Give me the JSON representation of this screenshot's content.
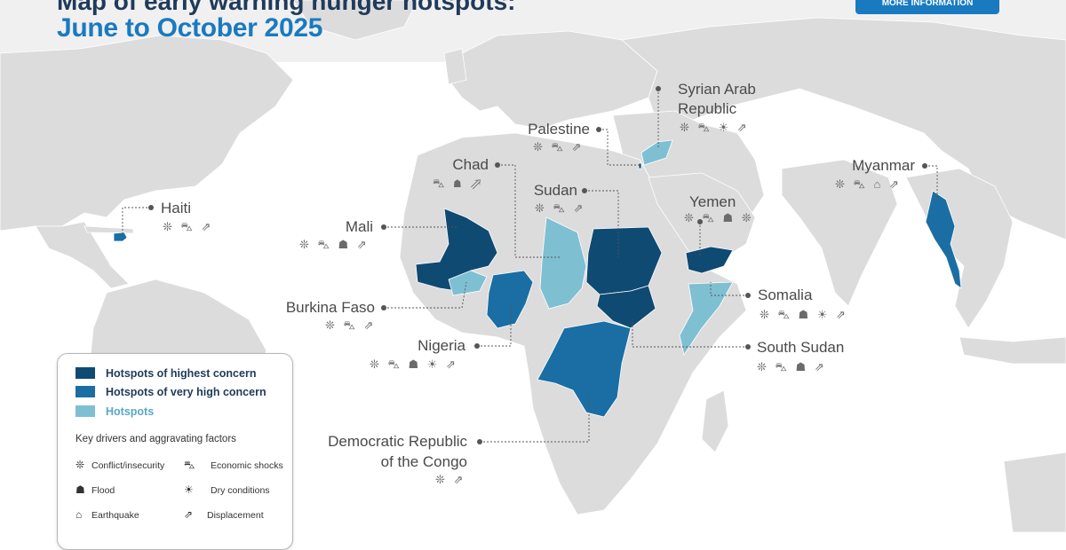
{
  "title": {
    "line1": "Map of early warning hunger hotspots:",
    "line2": "June to October 2025"
  },
  "more_button": "MORE INFORMATION",
  "colors": {
    "highest": "#0f4a73",
    "very_high": "#1a6ea3",
    "hotspot": "#7fbfd2",
    "land": "#dcdcdc",
    "sea": "#ffffff"
  },
  "icon_glyphs": {
    "conflict": "❊",
    "economic": "⛍",
    "flood": "☗",
    "dry": "☀",
    "earthquake": "⌂",
    "displacement": "⇗"
  },
  "countries": [
    {
      "id": "haiti",
      "label": "Haiti",
      "icons": "❊ ⛍ ⇗"
    },
    {
      "id": "mali",
      "label": "Mali",
      "icons": "❊ ⛍ ☗ ⇗"
    },
    {
      "id": "burkina",
      "label": "Burkina Faso",
      "icons": "❊ ⛍ ⇗"
    },
    {
      "id": "nigeria",
      "label": "Nigeria",
      "icons": "❊ ⛍ ☗ ☀ ⇗"
    },
    {
      "id": "drc",
      "label": "Democratic Republic\nof the Congo",
      "line1": "Democratic Republic",
      "line2": "of the Congo",
      "icons": "❊ ⇗"
    },
    {
      "id": "chad",
      "label": "Chad",
      "icons": "⛍ ☗ ⇗"
    },
    {
      "id": "sudan",
      "label": "Sudan",
      "icons": "❊ ⛍ ⇗"
    },
    {
      "id": "palestine",
      "label": "Palestine",
      "icons": "❊ ⛍ ⇗"
    },
    {
      "id": "syria",
      "label": "Syrian Arab Republic",
      "line1": "Syrian Arab",
      "line2": "Republic",
      "icons": "❊ ⛍ ☀ ⇗"
    },
    {
      "id": "yemen",
      "label": "Yemen",
      "icons": "❊ ⛍ ☗ ❊"
    },
    {
      "id": "myanmar",
      "label": "Myanmar",
      "icons": "❊ ⛍ ⌂ ⇗"
    },
    {
      "id": "somalia",
      "label": "Somalia",
      "icons": "❊ ⛍ ☗ ☀ ⇗"
    },
    {
      "id": "south_sudan",
      "label": "South Sudan",
      "icons": "❊ ⛍ ☗ ⇗"
    }
  ],
  "legend": {
    "highest": "Hotspots of highest concern",
    "very_high": "Hotspots of very high concern",
    "hotspot": "Hotspots",
    "drivers_heading": "Key drivers and aggravating factors",
    "drivers": {
      "conflict": "Conflict/insecurity",
      "economic": "Economic shocks",
      "flood": "Flood",
      "dry": "Dry conditions",
      "earthquake": "Earthquake",
      "displacement": "Displacement"
    }
  }
}
